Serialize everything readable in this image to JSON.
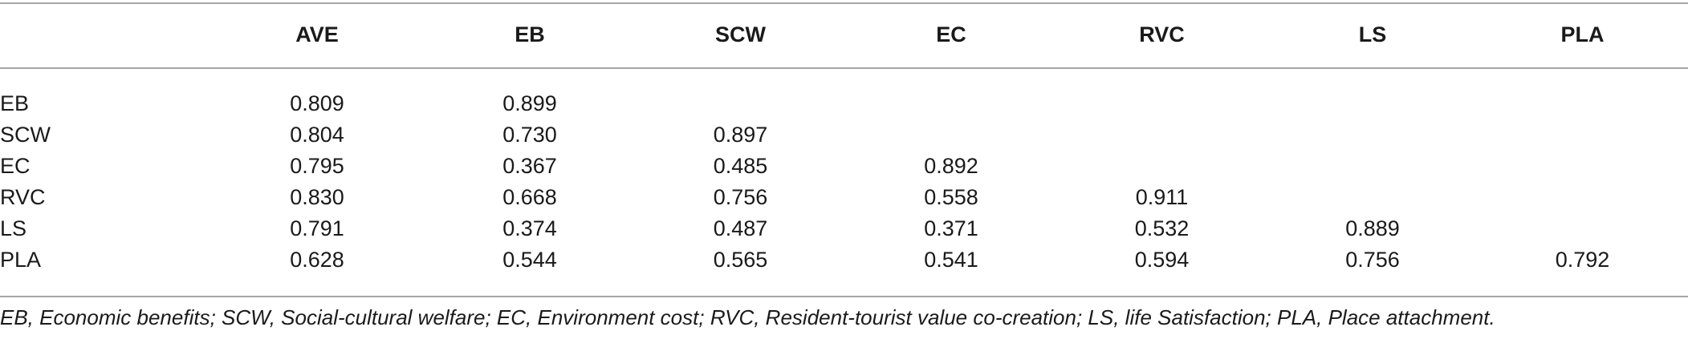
{
  "table": {
    "headers": [
      "",
      "AVE",
      "EB",
      "SCW",
      "EC",
      "RVC",
      "LS",
      "PLA"
    ],
    "rows": [
      {
        "label": "EB",
        "cells": [
          "0.809",
          "0.899",
          "",
          "",
          "",
          "",
          ""
        ]
      },
      {
        "label": "SCW",
        "cells": [
          "0.804",
          "0.730",
          "0.897",
          "",
          "",
          "",
          ""
        ]
      },
      {
        "label": "EC",
        "cells": [
          "0.795",
          "0.367",
          "0.485",
          "0.892",
          "",
          "",
          ""
        ]
      },
      {
        "label": "RVC",
        "cells": [
          "0.830",
          "0.668",
          "0.756",
          "0.558",
          "0.911",
          "",
          ""
        ]
      },
      {
        "label": "LS",
        "cells": [
          "0.791",
          "0.374",
          "0.487",
          "0.371",
          "0.532",
          "0.889",
          ""
        ]
      },
      {
        "label": "PLA",
        "cells": [
          "0.628",
          "0.544",
          "0.565",
          "0.541",
          "0.594",
          "0.756",
          "0.792"
        ]
      }
    ]
  },
  "footnote": "EB, Economic benefits; SCW, Social-cultural welfare; EC, Environment cost; RVC, Resident-tourist value co-creation; LS, life Satisfaction; PLA, Place attachment."
}
